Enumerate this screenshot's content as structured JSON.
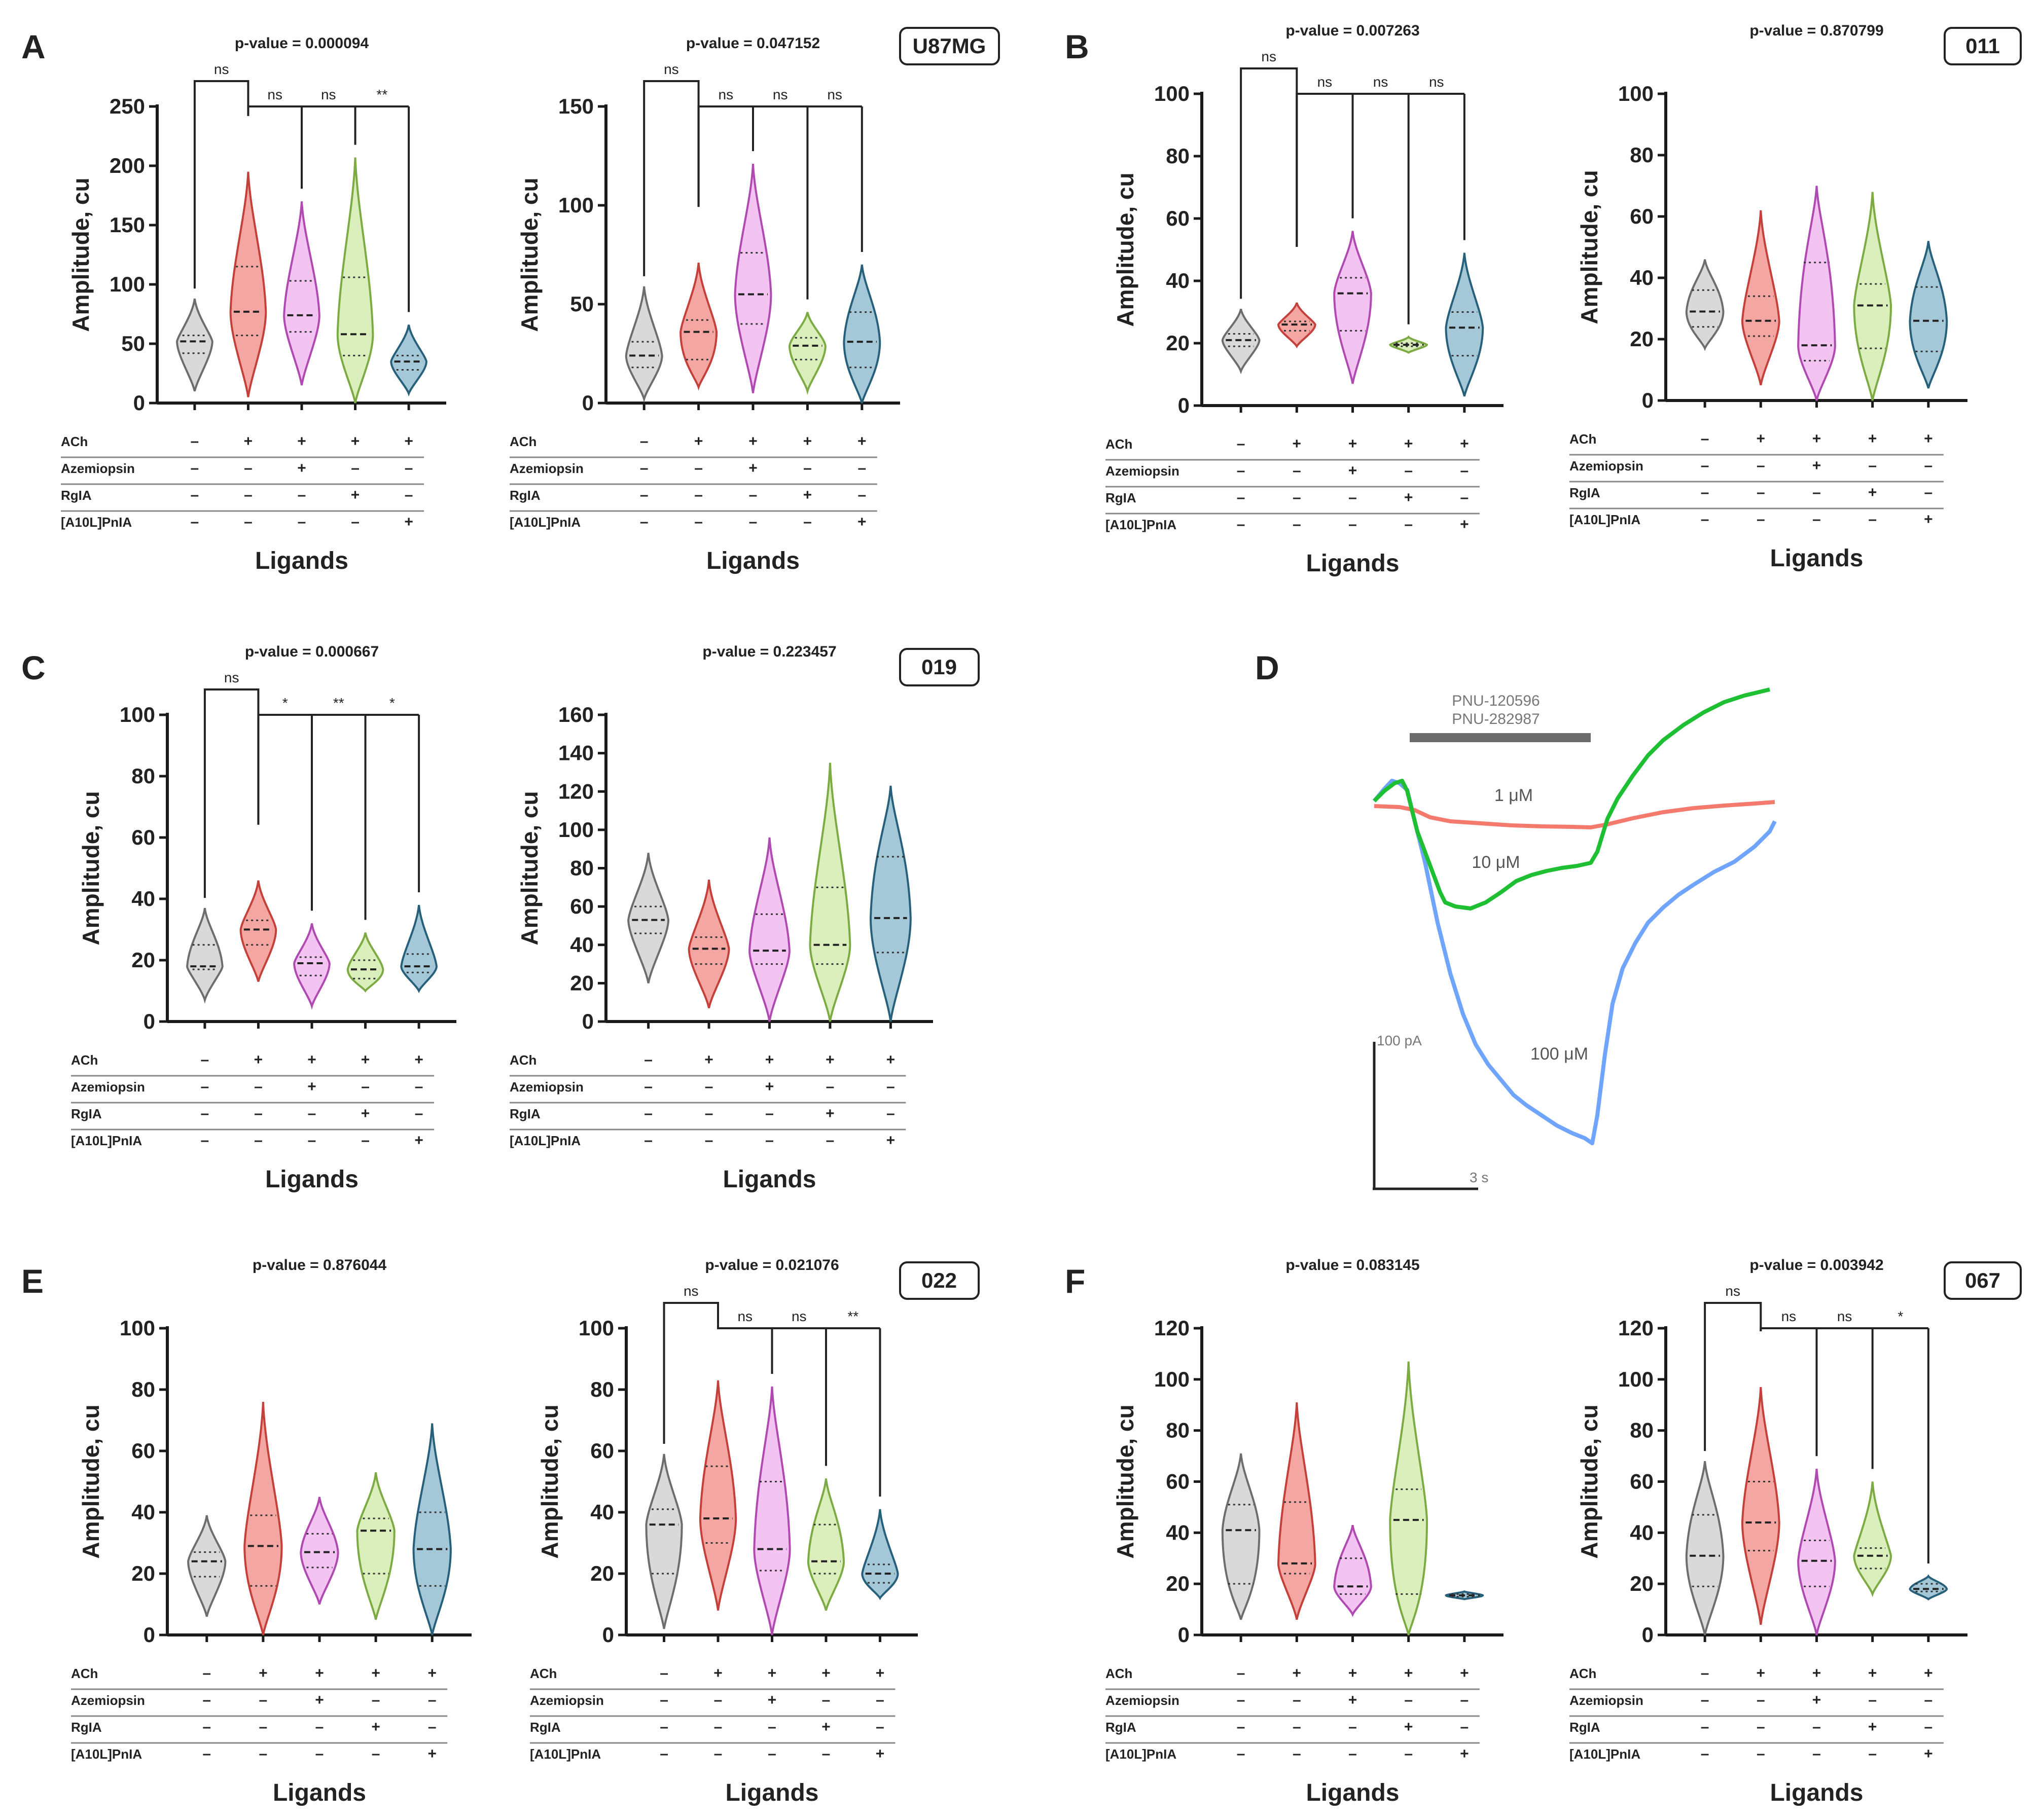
{
  "colors": {
    "axis": "#1a1a1a",
    "groups": [
      {
        "fill": "#d9d9d9",
        "stroke": "#6d6d6d"
      },
      {
        "fill": "#f4a6a2",
        "stroke": "#c4403a"
      },
      {
        "fill": "#f3c4f2",
        "stroke": "#b04ab2"
      },
      {
        "fill": "#dbefbd",
        "stroke": "#7cab43"
      },
      {
        "fill": "#a5c8d8",
        "stroke": "#27607a"
      }
    ],
    "trace_red": "#f47a6e",
    "trace_green": "#1fbf34",
    "trace_blue": "#6fa4ff",
    "bar_gray": "#6b6b6b"
  },
  "common": {
    "ylabel": "Amplitude, cu",
    "xlabel": "Ligands",
    "row_labels": [
      "ACh",
      "Azemiopsin",
      "RgIA",
      "[A10L]PnIA"
    ],
    "row_signs": [
      [
        "–",
        "+",
        "+",
        "+",
        "+"
      ],
      [
        "–",
        "–",
        "+",
        "–",
        "–"
      ],
      [
        "–",
        "–",
        "–",
        "+",
        "–"
      ],
      [
        "–",
        "–",
        "–",
        "–",
        "+"
      ]
    ]
  },
  "panels": [
    {
      "letter": "A",
      "cell_line": "U87MG"
    },
    {
      "letter": "B",
      "cell_line": "011"
    },
    {
      "letter": "C",
      "cell_line": "019"
    },
    {
      "letter": "E",
      "cell_line": "022"
    },
    {
      "letter": "F",
      "cell_line": "067"
    }
  ],
  "panel_d": {
    "letter": "D",
    "bar_label_1": "PNU-120596",
    "bar_label_2": "PNU-282987",
    "label_1uM": "1 μM",
    "label_10uM": "10 μM",
    "label_100uM": "100 μM",
    "scale_y": "100 pA",
    "scale_x": "3 s"
  },
  "chart_data": [
    {
      "type": "violin",
      "panel": "A",
      "title": "p-value = 0.000094",
      "ylim": [
        0,
        250
      ],
      "yticks": [
        0,
        50,
        100,
        150,
        200,
        250
      ],
      "groups": [
        {
          "median": 52,
          "q1": 42,
          "q3": 57,
          "min": 10,
          "max": 88
        },
        {
          "median": 77,
          "q1": 57,
          "q3": 115,
          "min": 5,
          "max": 195
        },
        {
          "median": 74,
          "q1": 60,
          "q3": 103,
          "min": 15,
          "max": 170
        },
        {
          "median": 58,
          "q1": 40,
          "q3": 106,
          "min": 0,
          "max": 207
        },
        {
          "median": 35,
          "q1": 28,
          "q3": 40,
          "min": 8,
          "max": 66
        }
      ],
      "brackets": [
        {
          "from": 0,
          "to": [
            1
          ],
          "text": "ns",
          "level": 1
        },
        {
          "from": 1,
          "to": [
            2,
            3,
            4
          ],
          "labels": [
            "ns",
            "ns",
            "**"
          ],
          "level": 0
        }
      ]
    },
    {
      "type": "violin",
      "panel": "A2",
      "title": "p-value = 0.047152",
      "ylim": [
        0,
        150
      ],
      "yticks": [
        0,
        50,
        100,
        150
      ],
      "groups": [
        {
          "median": 24,
          "q1": 18,
          "q3": 31,
          "min": 2,
          "max": 59
        },
        {
          "median": 36,
          "q1": 22,
          "q3": 42,
          "min": 8,
          "max": 71
        },
        {
          "median": 55,
          "q1": 40,
          "q3": 76,
          "min": 5,
          "max": 121
        },
        {
          "median": 29,
          "q1": 22,
          "q3": 33,
          "min": 6,
          "max": 46
        },
        {
          "median": 31,
          "q1": 18,
          "q3": 46,
          "min": 0,
          "max": 70
        }
      ],
      "brackets": [
        {
          "from": 0,
          "to": [
            1
          ],
          "text": "ns",
          "level": 1
        },
        {
          "from": 1,
          "to": [
            2,
            3,
            4
          ],
          "labels": [
            "ns",
            "ns",
            "ns"
          ],
          "level": 0
        }
      ]
    },
    {
      "type": "violin",
      "panel": "B",
      "title": "p-value = 0.007263",
      "ylim": [
        0,
        100
      ],
      "yticks": [
        0,
        20,
        40,
        60,
        80,
        100
      ],
      "groups": [
        {
          "median": 21,
          "q1": 19,
          "q3": 23,
          "min": 11,
          "max": 31
        },
        {
          "median": 26,
          "q1": 24,
          "q3": 27,
          "min": 19,
          "max": 33
        },
        {
          "median": 36,
          "q1": 24,
          "q3": 41,
          "min": 7,
          "max": 56
        },
        {
          "median": 19.5,
          "q1": 19,
          "q3": 20,
          "min": 17,
          "max": 22
        },
        {
          "median": 25,
          "q1": 16,
          "q3": 30,
          "min": 3,
          "max": 49
        }
      ],
      "brackets": [
        {
          "from": 0,
          "to": [
            1
          ],
          "text": "ns",
          "level": 1
        },
        {
          "from": 1,
          "to": [
            2,
            3,
            4
          ],
          "labels": [
            "ns",
            "ns",
            "ns"
          ],
          "level": 0
        }
      ]
    },
    {
      "type": "violin",
      "panel": "B2",
      "title": "p-value = 0.870799",
      "ylim": [
        0,
        100
      ],
      "yticks": [
        0,
        20,
        40,
        60,
        80,
        100
      ],
      "groups": [
        {
          "median": 29,
          "q1": 24,
          "q3": 36,
          "min": 17,
          "max": 46
        },
        {
          "median": 26,
          "q1": 21,
          "q3": 34,
          "min": 5,
          "max": 62
        },
        {
          "median": 18,
          "q1": 13,
          "q3": 45,
          "min": 0,
          "max": 70
        },
        {
          "median": 31,
          "q1": 17,
          "q3": 38,
          "min": 0,
          "max": 68
        },
        {
          "median": 26,
          "q1": 16,
          "q3": 37,
          "min": 4,
          "max": 52
        }
      ],
      "brackets": []
    },
    {
      "type": "violin",
      "panel": "C",
      "title": "p-value = 0.000667",
      "ylim": [
        0,
        100
      ],
      "yticks": [
        0,
        20,
        40,
        60,
        80,
        100
      ],
      "groups": [
        {
          "median": 18,
          "q1": 17,
          "q3": 25,
          "min": 7,
          "max": 37
        },
        {
          "median": 30,
          "q1": 25,
          "q3": 33,
          "min": 13,
          "max": 46
        },
        {
          "median": 19,
          "q1": 15,
          "q3": 21,
          "min": 5,
          "max": 32
        },
        {
          "median": 17,
          "q1": 14,
          "q3": 20,
          "min": 10,
          "max": 29
        },
        {
          "median": 18,
          "q1": 16,
          "q3": 22,
          "min": 10,
          "max": 38
        }
      ],
      "brackets": [
        {
          "from": 0,
          "to": [
            1
          ],
          "text": "ns",
          "level": 1
        },
        {
          "from": 1,
          "to": [
            2,
            3,
            4
          ],
          "labels": [
            "*",
            "**",
            "*"
          ],
          "level": 0
        }
      ]
    },
    {
      "type": "violin",
      "panel": "C2",
      "title": "p-value = 0.223457",
      "ylim": [
        0,
        160
      ],
      "yticks": [
        0,
        20,
        40,
        60,
        80,
        100,
        120,
        140,
        160
      ],
      "groups": [
        {
          "median": 53,
          "q1": 46,
          "q3": 60,
          "min": 20,
          "max": 88
        },
        {
          "median": 38,
          "q1": 30,
          "q3": 44,
          "min": 7,
          "max": 74
        },
        {
          "median": 37,
          "q1": 30,
          "q3": 56,
          "min": 0,
          "max": 96
        },
        {
          "median": 40,
          "q1": 30,
          "q3": 70,
          "min": 0,
          "max": 135
        },
        {
          "median": 54,
          "q1": 36,
          "q3": 86,
          "min": 0,
          "max": 123
        }
      ],
      "brackets": []
    },
    {
      "type": "violin",
      "panel": "E",
      "title": "p-value = 0.876044",
      "ylim": [
        0,
        100
      ],
      "yticks": [
        0,
        20,
        40,
        60,
        80,
        100
      ],
      "groups": [
        {
          "median": 24,
          "q1": 19,
          "q3": 27,
          "min": 6,
          "max": 39
        },
        {
          "median": 29,
          "q1": 16,
          "q3": 39,
          "min": 0,
          "max": 76
        },
        {
          "median": 27,
          "q1": 22,
          "q3": 33,
          "min": 10,
          "max": 45
        },
        {
          "median": 34,
          "q1": 20,
          "q3": 38,
          "min": 5,
          "max": 53
        },
        {
          "median": 28,
          "q1": 16,
          "q3": 40,
          "min": 0,
          "max": 69
        }
      ],
      "brackets": []
    },
    {
      "type": "violin",
      "panel": "E2",
      "title": "p-value = 0.021076",
      "ylim": [
        0,
        100
      ],
      "yticks": [
        0,
        20,
        40,
        60,
        80,
        100
      ],
      "groups": [
        {
          "median": 36,
          "q1": 20,
          "q3": 41,
          "min": 2,
          "max": 59
        },
        {
          "median": 38,
          "q1": 30,
          "q3": 55,
          "min": 8,
          "max": 83
        },
        {
          "median": 28,
          "q1": 21,
          "q3": 50,
          "min": 0,
          "max": 81
        },
        {
          "median": 24,
          "q1": 20,
          "q3": 36,
          "min": 8,
          "max": 51
        },
        {
          "median": 20,
          "q1": 17,
          "q3": 23,
          "min": 12,
          "max": 41
        }
      ],
      "brackets": [
        {
          "from": 0,
          "to": [
            1
          ],
          "text": "ns",
          "level": 1
        },
        {
          "from": 1,
          "to": [
            2,
            3,
            4
          ],
          "labels": [
            "ns",
            "ns",
            "**"
          ],
          "level": 0
        }
      ]
    },
    {
      "type": "violin",
      "panel": "F",
      "title": "p-value = 0.083145",
      "ylim": [
        0,
        120
      ],
      "yticks": [
        0,
        20,
        40,
        60,
        80,
        100,
        120
      ],
      "groups": [
        {
          "median": 41,
          "q1": 20,
          "q3": 51,
          "min": 6,
          "max": 71
        },
        {
          "median": 28,
          "q1": 24,
          "q3": 52,
          "min": 6,
          "max": 91
        },
        {
          "median": 19,
          "q1": 16,
          "q3": 30,
          "min": 8,
          "max": 43
        },
        {
          "median": 45,
          "q1": 16,
          "q3": 57,
          "min": 0,
          "max": 107
        },
        {
          "median": 15.5,
          "q1": 15,
          "q3": 16,
          "min": 14,
          "max": 17
        }
      ],
      "brackets": []
    },
    {
      "type": "violin",
      "panel": "F2",
      "title": "p-value = 0.003942",
      "ylim": [
        0,
        120
      ],
      "yticks": [
        0,
        20,
        40,
        60,
        80,
        100,
        120
      ],
      "groups": [
        {
          "median": 31,
          "q1": 19,
          "q3": 47,
          "min": 0,
          "max": 68
        },
        {
          "median": 44,
          "q1": 33,
          "q3": 60,
          "min": 4,
          "max": 97
        },
        {
          "median": 29,
          "q1": 19,
          "q3": 37,
          "min": 0,
          "max": 65
        },
        {
          "median": 31,
          "q1": 26,
          "q3": 34,
          "min": 16,
          "max": 60
        },
        {
          "median": 18,
          "q1": 17,
          "q3": 20,
          "min": 14,
          "max": 23
        }
      ],
      "brackets": [
        {
          "from": 0,
          "to": [
            1
          ],
          "text": "ns",
          "level": 1
        },
        {
          "from": 1,
          "to": [
            2,
            3,
            4
          ],
          "labels": [
            "ns",
            "ns",
            "*"
          ],
          "level": 0
        }
      ]
    }
  ]
}
